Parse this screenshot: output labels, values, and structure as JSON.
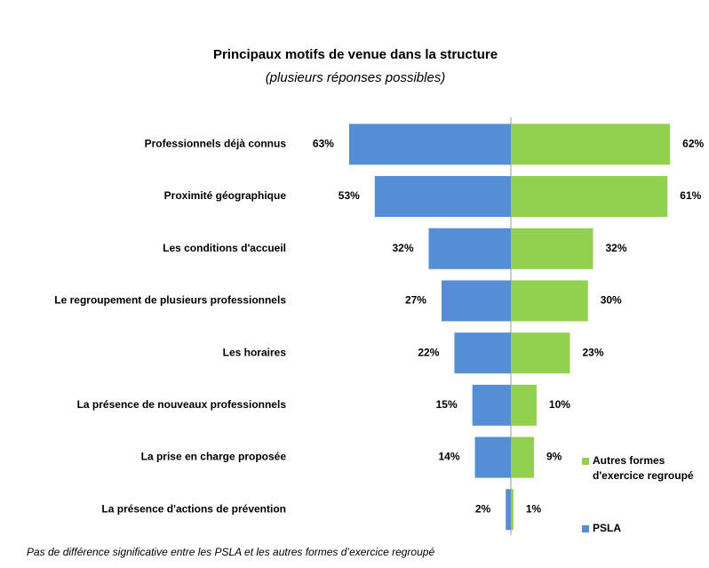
{
  "chart_data": {
    "type": "bar",
    "title": "Principaux motifs de venue dans la structure",
    "subtitle": "(plusieurs réponses possibles)",
    "categories": [
      "Professionnels déjà connus",
      "Proximité géographique",
      "Les conditions d'accueil",
      "Le regroupement de plusieurs professionnels",
      "Les horaires",
      "La présence de nouveaux professionnels",
      "La prise en charge proposée",
      "La présence d'actions de prévention"
    ],
    "series": [
      {
        "name": "PSLA",
        "color": "#558ed5",
        "values": [
          63,
          53,
          32,
          27,
          22,
          15,
          14,
          2
        ],
        "value_labels": [
          "63%",
          "53%",
          "32%",
          "27%",
          "22%",
          "15%",
          "14%",
          "2%"
        ]
      },
      {
        "name": "Autres formes d'exercice regroupé",
        "color": "#92d050",
        "values": [
          62,
          61,
          32,
          30,
          23,
          10,
          9,
          1
        ],
        "value_labels": [
          "62%",
          "61%",
          "32%",
          "30%",
          "23%",
          "10%",
          "9%",
          "1%"
        ]
      }
    ],
    "note": "Pas de différence significative entre les PSLA et les autres formes d’exercice regroupé"
  }
}
